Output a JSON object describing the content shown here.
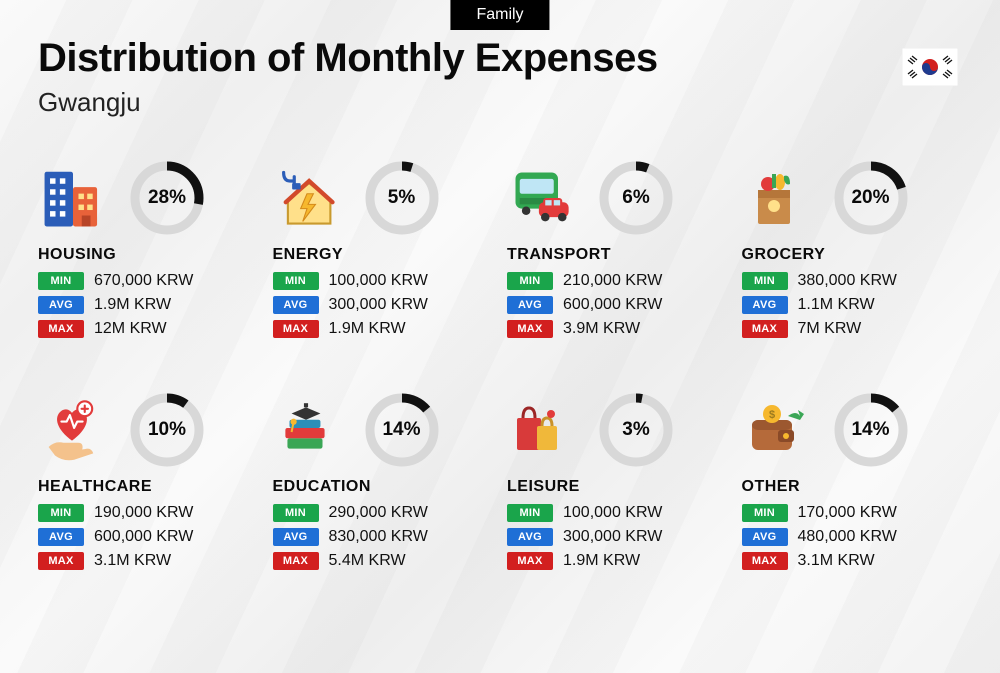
{
  "tag": "Family",
  "title": "Distribution of Monthly Expenses",
  "subtitle": "Gwangju",
  "flag": "south-korea",
  "badgeLabels": {
    "min": "MIN",
    "avg": "AVG",
    "max": "MAX"
  },
  "badgeColors": {
    "min": "#1aa54b",
    "avg": "#1f6fd6",
    "max": "#d21f1f"
  },
  "donut": {
    "fg_color": "#111111",
    "bg_color": "#d8d8d8",
    "stroke_width": 9,
    "radius": 32
  },
  "categories": [
    {
      "key": "housing",
      "name": "HOUSING",
      "percent": 28,
      "min": "670,000 KRW",
      "avg": "1.9M KRW",
      "max": "12M KRW",
      "icon": "buildings"
    },
    {
      "key": "energy",
      "name": "ENERGY",
      "percent": 5,
      "min": "100,000 KRW",
      "avg": "300,000 KRW",
      "max": "1.9M KRW",
      "icon": "energy-house"
    },
    {
      "key": "transport",
      "name": "TRANSPORT",
      "percent": 6,
      "min": "210,000 KRW",
      "avg": "600,000 KRW",
      "max": "3.9M KRW",
      "icon": "bus-car"
    },
    {
      "key": "grocery",
      "name": "GROCERY",
      "percent": 20,
      "min": "380,000 KRW",
      "avg": "1.1M KRW",
      "max": "7M KRW",
      "icon": "grocery-bag"
    },
    {
      "key": "healthcare",
      "name": "HEALTHCARE",
      "percent": 10,
      "min": "190,000 KRW",
      "avg": "600,000 KRW",
      "max": "3.1M KRW",
      "icon": "heart-hand"
    },
    {
      "key": "education",
      "name": "EDUCATION",
      "percent": 14,
      "min": "290,000 KRW",
      "avg": "830,000 KRW",
      "max": "5.4M KRW",
      "icon": "grad-books"
    },
    {
      "key": "leisure",
      "name": "LEISURE",
      "percent": 3,
      "min": "100,000 KRW",
      "avg": "300,000 KRW",
      "max": "1.9M KRW",
      "icon": "shopping-bags"
    },
    {
      "key": "other",
      "name": "OTHER",
      "percent": 14,
      "min": "170,000 KRW",
      "avg": "480,000 KRW",
      "max": "3.1M KRW",
      "icon": "wallet-arrow"
    }
  ]
}
